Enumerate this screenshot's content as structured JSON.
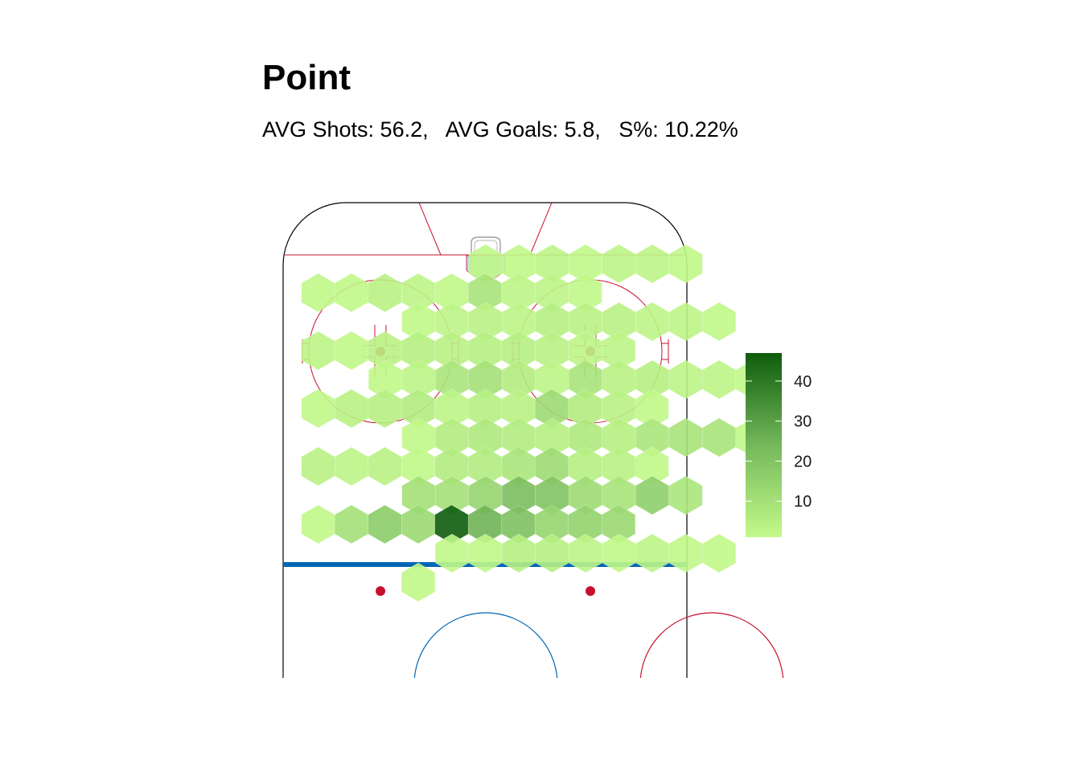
{
  "chart_data": {
    "type": "heatmap",
    "title": "Point",
    "subtitle": "AVG Shots: 56.2,   AVG Goals: 5.8,   S%: 10.22%",
    "legend": {
      "position": "right",
      "min": 1,
      "max": 47,
      "ticks": [
        10,
        20,
        30,
        40
      ],
      "color_low": "#c3fa8a",
      "color_high": "#0e5c0c"
    },
    "colors": {
      "red_line": "#c8102e",
      "blue_line": "#0066b3",
      "crease": "#b9d3ee",
      "boards": "#000000"
    },
    "hex_values": [
      [
        null,
        null,
        null,
        2,
        2,
        3,
        2,
        3,
        3,
        2,
        null
      ],
      [
        null,
        2,
        2,
        4,
        3,
        2,
        9,
        3,
        3,
        2,
        null
      ],
      [
        null,
        2,
        3,
        4,
        3,
        5,
        4,
        4,
        3,
        3,
        2
      ],
      [
        null,
        3,
        2,
        4,
        5,
        4,
        5,
        5,
        4,
        3,
        3
      ],
      [
        2,
        3,
        8,
        10,
        6,
        3,
        9,
        4,
        5,
        3,
        3,
        2
      ],
      [
        null,
        2,
        4,
        5,
        6,
        3,
        5,
        4,
        12,
        6,
        4,
        2
      ],
      [
        null,
        2,
        6,
        7,
        6,
        5,
        7,
        5,
        8,
        9,
        9,
        2
      ],
      [
        null,
        4,
        3,
        4,
        2,
        6,
        6,
        8,
        12,
        5,
        4,
        2
      ],
      [
        null,
        10,
        10,
        14,
        22,
        20,
        12,
        9,
        16,
        8,
        null
      ],
      [
        null,
        2,
        10,
        17,
        13,
        47,
        25,
        21,
        14,
        15,
        13
      ],
      [
        null,
        null,
        2,
        2,
        5,
        5,
        3,
        2,
        3,
        2,
        2
      ],
      [
        null,
        null,
        null,
        null,
        2,
        null,
        null,
        null,
        null,
        null,
        null
      ]
    ]
  }
}
